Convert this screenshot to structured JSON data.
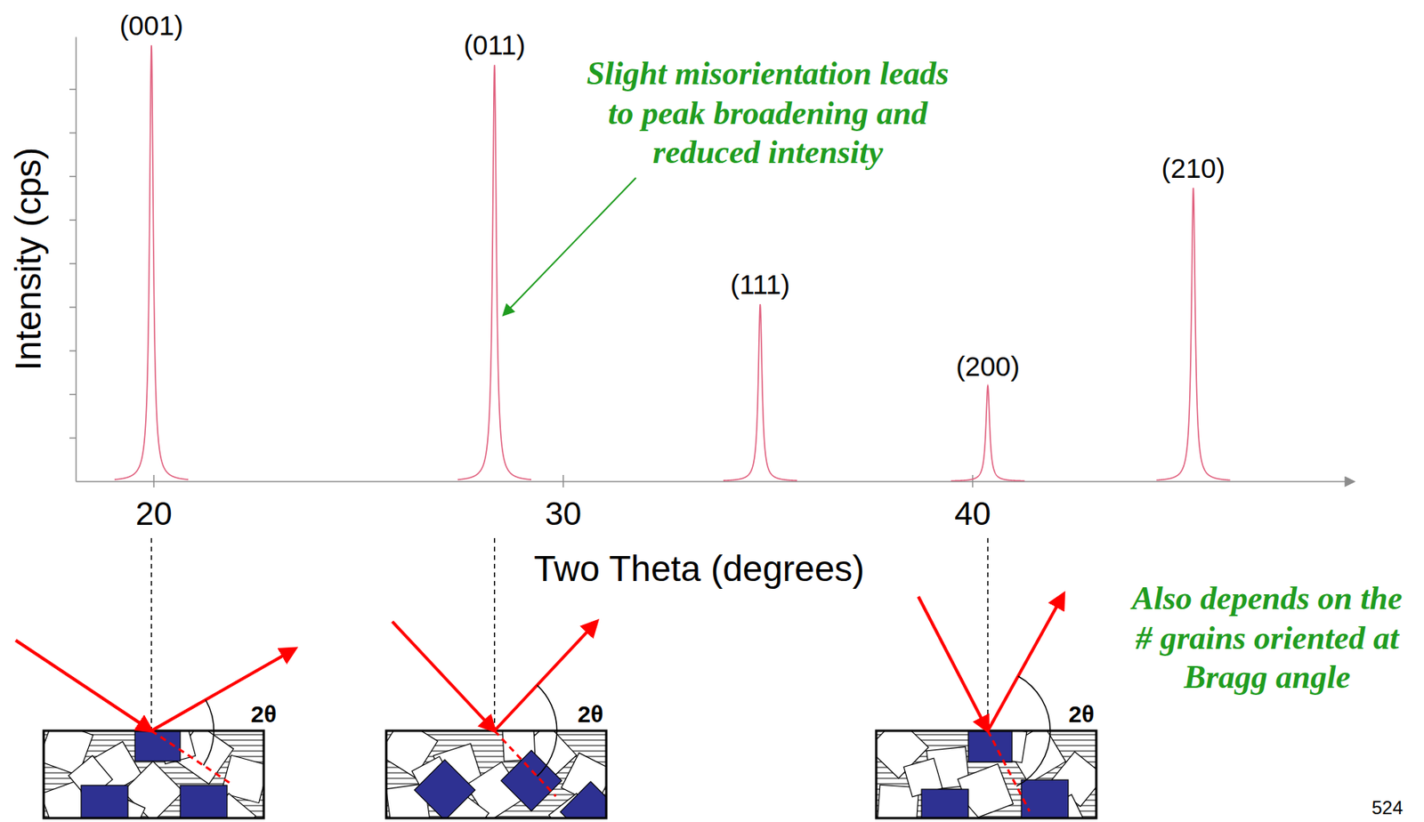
{
  "chart_data": {
    "type": "peaks",
    "x_label": "Two Theta (degrees)",
    "y_label": "Intensity (cps)",
    "categories": [
      "(001)",
      "(011)",
      "(111)",
      "(200)",
      "(210)"
    ],
    "x": [
      19.95,
      28.33,
      34.82,
      40.38,
      45.4
    ],
    "values": [
      10.0,
      9.55,
      4.06,
      2.19,
      6.73
    ],
    "color": "#e0607e",
    "xlim": [
      18.1,
      49.3
    ],
    "xticks": [
      20,
      30,
      40
    ],
    "ylim": [
      0,
      10.2
    ],
    "yticks": [
      1,
      2,
      3,
      4,
      5,
      6,
      7,
      8,
      9
    ],
    "tick_labels": "x",
    "annotations": [
      "Slight misorientation leads to peak broadening and reduced intensity",
      "Also depends on the # grains oriented at Bragg angle"
    ]
  },
  "diagram_label": "2θ",
  "page_number": "524"
}
